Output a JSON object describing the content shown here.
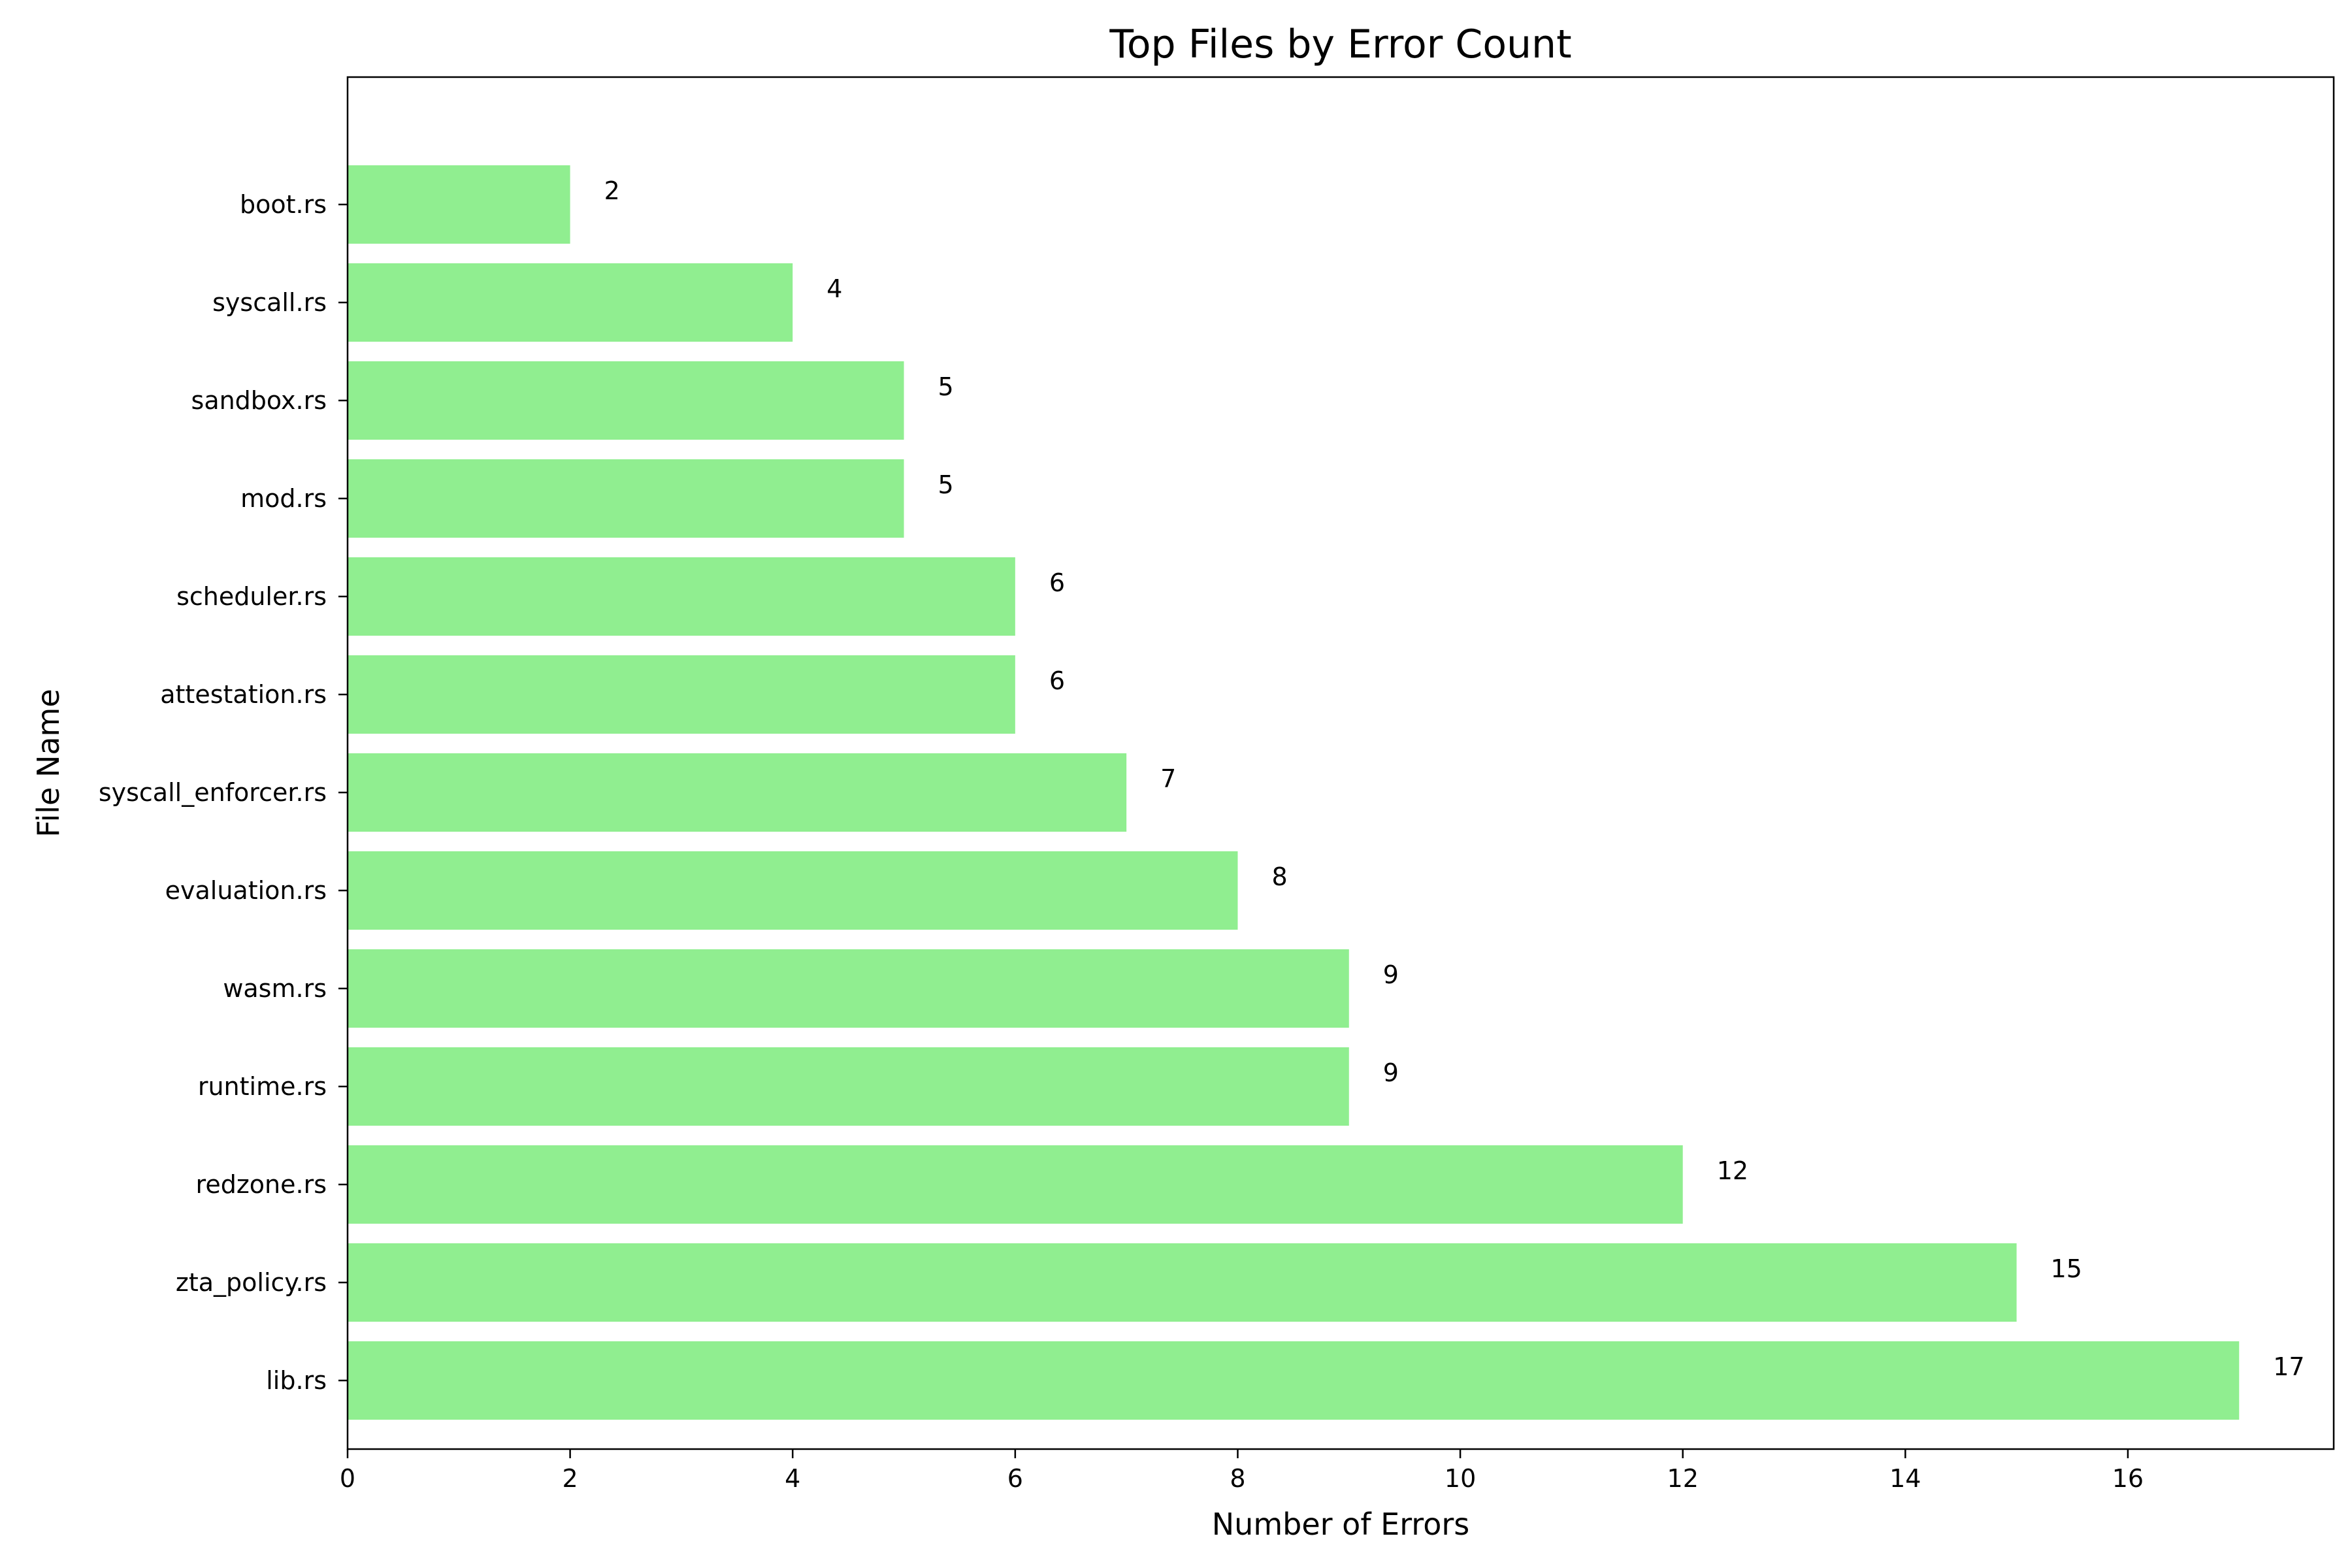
{
  "chart_data": {
    "type": "bar",
    "orientation": "horizontal",
    "title": "Top Files by Error Count",
    "xlabel": "Number of Errors",
    "ylabel": "File Name",
    "categories": [
      "lib.rs",
      "zta_policy.rs",
      "redzone.rs",
      "runtime.rs",
      "wasm.rs",
      "evaluation.rs",
      "syscall_enforcer.rs",
      "attestation.rs",
      "scheduler.rs",
      "mod.rs",
      "sandbox.rs",
      "syscall.rs",
      "boot.rs"
    ],
    "values": [
      17,
      15,
      12,
      9,
      9,
      8,
      7,
      6,
      6,
      5,
      5,
      4,
      2
    ],
    "xlim": [
      0,
      17.85
    ],
    "xticks": [
      0,
      2,
      4,
      6,
      8,
      10,
      12,
      14,
      16
    ],
    "grid": false,
    "show_value_labels": true,
    "colors": {
      "bar": "#90ee90",
      "axes": "#000000",
      "background": "#ffffff"
    }
  }
}
